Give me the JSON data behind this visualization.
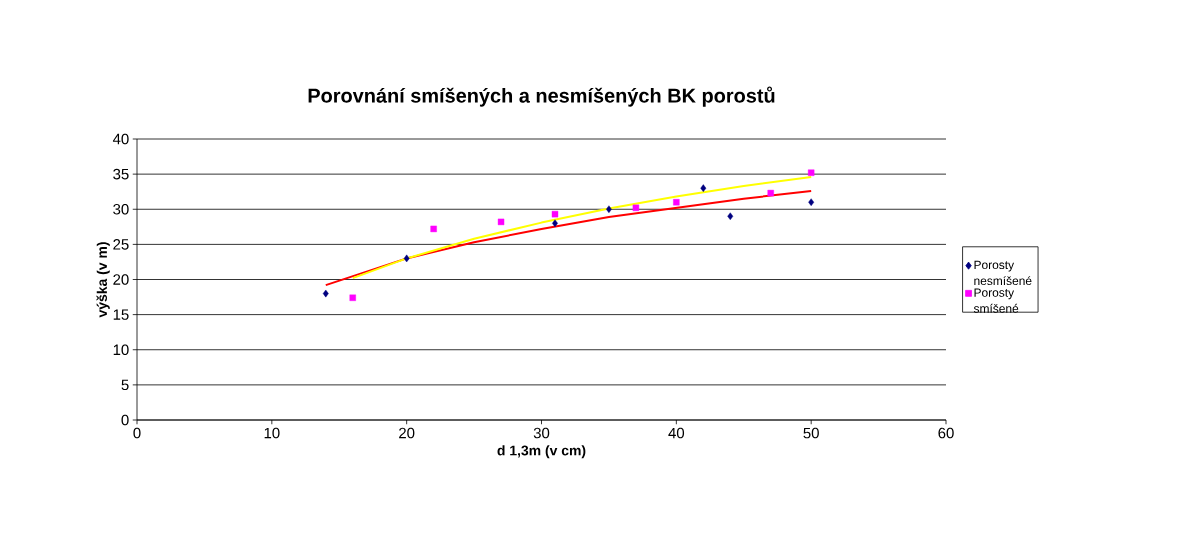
{
  "chart_data": {
    "type": "scatter",
    "title": "Porovnání smíšených a nesmíšených BK porostů",
    "xlabel": "d 1,3m (v cm)",
    "ylabel": "výška (v m)",
    "xlim": [
      0,
      60
    ],
    "xticks": [
      0,
      10,
      20,
      30,
      40,
      50,
      60
    ],
    "ylim": [
      0,
      40
    ],
    "yticks": [
      0,
      5,
      10,
      15,
      20,
      25,
      30,
      35,
      40
    ],
    "grid": "y",
    "legend": "right",
    "series": [
      {
        "name": "Porosty nesmíšené",
        "color": "#000080",
        "marker": "diamond",
        "x": [
          14,
          20,
          31,
          35,
          42,
          44,
          50
        ],
        "values": [
          18,
          23,
          28,
          30,
          33,
          29,
          31
        ]
      },
      {
        "name": "Porosty smíšené",
        "color": "#ff00ff",
        "marker": "square",
        "x": [
          16,
          22,
          27,
          31,
          37,
          40,
          47,
          50
        ],
        "values": [
          17.4,
          27.2,
          28.2,
          29.3,
          30.2,
          31,
          32.3,
          35.2
        ]
      },
      {
        "type": "line",
        "color": "#ff0000",
        "x": [
          14,
          20,
          25,
          30,
          35,
          40,
          45,
          50
        ],
        "values": [
          19.2,
          23,
          25.3,
          27.2,
          28.9,
          30.2,
          31.5,
          32.6
        ]
      },
      {
        "type": "line",
        "color": "#ffff00",
        "x": [
          16,
          20,
          25,
          30,
          35,
          40,
          45,
          50
        ],
        "values": [
          20.2,
          23,
          25.8,
          28.1,
          30.1,
          31.8,
          33.3,
          34.6
        ]
      }
    ]
  }
}
